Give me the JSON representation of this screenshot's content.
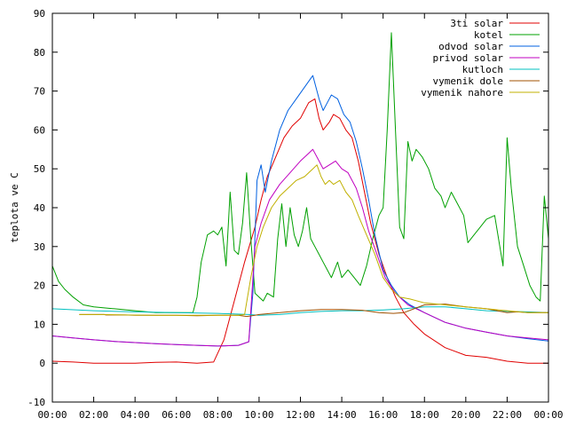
{
  "chart_data": {
    "type": "line",
    "title": "",
    "xlabel": "",
    "ylabel": "teplota ve C",
    "xlim": [
      0,
      24
    ],
    "ylim": [
      -10,
      90
    ],
    "x_ticks": [
      "00:00",
      "02:00",
      "04:00",
      "06:00",
      "08:00",
      "10:00",
      "12:00",
      "14:00",
      "16:00",
      "18:00",
      "20:00",
      "22:00",
      "00:00"
    ],
    "y_ticks": [
      -10,
      0,
      10,
      20,
      30,
      40,
      50,
      60,
      70,
      80,
      90
    ],
    "grid": false,
    "legend_position": "top-right",
    "series": [
      {
        "name": "3ti solar",
        "color": "#e00000",
        "points": [
          [
            0,
            0.5
          ],
          [
            1,
            0.3
          ],
          [
            2,
            0
          ],
          [
            3,
            0
          ],
          [
            4,
            0
          ],
          [
            5,
            0.2
          ],
          [
            6,
            0.3
          ],
          [
            7,
            0
          ],
          [
            7.8,
            0.3
          ],
          [
            8.3,
            6
          ],
          [
            8.8,
            16
          ],
          [
            9.3,
            26
          ],
          [
            9.8,
            35
          ],
          [
            10.1,
            42
          ],
          [
            10.4,
            48
          ],
          [
            10.8,
            53
          ],
          [
            11.2,
            58
          ],
          [
            11.6,
            61
          ],
          [
            12.0,
            63
          ],
          [
            12.4,
            67
          ],
          [
            12.7,
            68
          ],
          [
            12.9,
            63
          ],
          [
            13.1,
            60
          ],
          [
            13.4,
            62
          ],
          [
            13.6,
            64
          ],
          [
            13.9,
            63
          ],
          [
            14.2,
            60
          ],
          [
            14.5,
            58
          ],
          [
            14.8,
            52
          ],
          [
            15.1,
            44
          ],
          [
            15.4,
            36
          ],
          [
            15.8,
            28
          ],
          [
            16.2,
            22
          ],
          [
            16.6,
            17
          ],
          [
            17.0,
            13
          ],
          [
            17.5,
            10
          ],
          [
            18,
            7.5
          ],
          [
            19,
            4
          ],
          [
            20,
            2
          ],
          [
            21,
            1.5
          ],
          [
            22,
            0.5
          ],
          [
            23,
            0
          ],
          [
            24,
            0
          ]
        ]
      },
      {
        "name": "kotel",
        "color": "#00a000",
        "points": [
          [
            0,
            25
          ],
          [
            0.3,
            21
          ],
          [
            0.6,
            19
          ],
          [
            1,
            17
          ],
          [
            1.5,
            15
          ],
          [
            2,
            14.5
          ],
          [
            3,
            14
          ],
          [
            4,
            13.5
          ],
          [
            5,
            13
          ],
          [
            6,
            13
          ],
          [
            6.8,
            13
          ],
          [
            7.0,
            17
          ],
          [
            7.2,
            26
          ],
          [
            7.5,
            33
          ],
          [
            7.8,
            34
          ],
          [
            8.0,
            33
          ],
          [
            8.2,
            35
          ],
          [
            8.4,
            25
          ],
          [
            8.6,
            44
          ],
          [
            8.8,
            29
          ],
          [
            9.0,
            28
          ],
          [
            9.2,
            36
          ],
          [
            9.4,
            49
          ],
          [
            9.6,
            32
          ],
          [
            9.8,
            18
          ],
          [
            10.0,
            17
          ],
          [
            10.2,
            16
          ],
          [
            10.4,
            18
          ],
          [
            10.7,
            17
          ],
          [
            10.9,
            32
          ],
          [
            11.1,
            41
          ],
          [
            11.3,
            30
          ],
          [
            11.5,
            40
          ],
          [
            11.7,
            33
          ],
          [
            11.9,
            30
          ],
          [
            12.1,
            34
          ],
          [
            12.3,
            40
          ],
          [
            12.5,
            32
          ],
          [
            12.7,
            30
          ],
          [
            12.9,
            28
          ],
          [
            13.1,
            26
          ],
          [
            13.3,
            24
          ],
          [
            13.5,
            22
          ],
          [
            13.8,
            26
          ],
          [
            14.0,
            22
          ],
          [
            14.3,
            24
          ],
          [
            14.6,
            22
          ],
          [
            14.9,
            20
          ],
          [
            15.2,
            25
          ],
          [
            15.5,
            32
          ],
          [
            15.8,
            38
          ],
          [
            16.0,
            40
          ],
          [
            16.2,
            60
          ],
          [
            16.4,
            85
          ],
          [
            16.6,
            60
          ],
          [
            16.8,
            35
          ],
          [
            17.0,
            32
          ],
          [
            17.2,
            57
          ],
          [
            17.4,
            52
          ],
          [
            17.6,
            55
          ],
          [
            17.9,
            53
          ],
          [
            18.2,
            50
          ],
          [
            18.5,
            45
          ],
          [
            18.8,
            43
          ],
          [
            19.0,
            40
          ],
          [
            19.3,
            44
          ],
          [
            19.6,
            41
          ],
          [
            19.9,
            38
          ],
          [
            20.1,
            31
          ],
          [
            20.4,
            33
          ],
          [
            20.7,
            35
          ],
          [
            21.0,
            37
          ],
          [
            21.4,
            38
          ],
          [
            21.8,
            25
          ],
          [
            22.0,
            58
          ],
          [
            22.2,
            45
          ],
          [
            22.5,
            30
          ],
          [
            22.8,
            25
          ],
          [
            23.1,
            20
          ],
          [
            23.4,
            17
          ],
          [
            23.6,
            16
          ],
          [
            23.8,
            43
          ],
          [
            24.0,
            32
          ],
          [
            24.3,
            23
          ]
        ]
      },
      {
        "name": "odvod solar",
        "color": "#0060e0",
        "points": [
          [
            0,
            7
          ],
          [
            1,
            6.5
          ],
          [
            2,
            6
          ],
          [
            3,
            5.6
          ],
          [
            4,
            5.3
          ],
          [
            5,
            5
          ],
          [
            6,
            4.8
          ],
          [
            7,
            4.6
          ],
          [
            8,
            4.4
          ],
          [
            9,
            4.6
          ],
          [
            9.5,
            5.5
          ],
          [
            9.7,
            18
          ],
          [
            9.9,
            47
          ],
          [
            10.1,
            51
          ],
          [
            10.3,
            44
          ],
          [
            10.6,
            52
          ],
          [
            11.0,
            60
          ],
          [
            11.4,
            65
          ],
          [
            11.8,
            68
          ],
          [
            12.2,
            71
          ],
          [
            12.6,
            74
          ],
          [
            12.9,
            68
          ],
          [
            13.1,
            65
          ],
          [
            13.3,
            67
          ],
          [
            13.5,
            69
          ],
          [
            13.8,
            68
          ],
          [
            14.1,
            64
          ],
          [
            14.4,
            62
          ],
          [
            14.7,
            57
          ],
          [
            15.0,
            50
          ],
          [
            15.3,
            42
          ],
          [
            15.6,
            33
          ],
          [
            16.0,
            24
          ],
          [
            16.4,
            20
          ],
          [
            16.8,
            17
          ],
          [
            17.3,
            15
          ],
          [
            18,
            13
          ],
          [
            19,
            10.5
          ],
          [
            20,
            9
          ],
          [
            21,
            8
          ],
          [
            22,
            7
          ],
          [
            23,
            6.3
          ],
          [
            24,
            5.7
          ]
        ]
      },
      {
        "name": "privod solar",
        "color": "#c000c0",
        "points": [
          [
            0,
            7
          ],
          [
            1,
            6.5
          ],
          [
            2,
            6
          ],
          [
            3,
            5.6
          ],
          [
            4,
            5.3
          ],
          [
            5,
            5
          ],
          [
            6,
            4.8
          ],
          [
            7,
            4.6
          ],
          [
            8,
            4.4
          ],
          [
            9,
            4.6
          ],
          [
            9.5,
            5.5
          ],
          [
            9.8,
            30
          ],
          [
            10.1,
            36
          ],
          [
            10.5,
            42
          ],
          [
            11,
            46
          ],
          [
            11.5,
            49
          ],
          [
            12,
            52
          ],
          [
            12.4,
            54
          ],
          [
            12.6,
            55
          ],
          [
            12.9,
            52
          ],
          [
            13.1,
            50
          ],
          [
            13.4,
            51
          ],
          [
            13.7,
            52
          ],
          [
            14.0,
            50
          ],
          [
            14.3,
            49
          ],
          [
            14.7,
            45
          ],
          [
            15.0,
            40
          ],
          [
            15.3,
            34
          ],
          [
            15.7,
            28
          ],
          [
            16.1,
            22
          ],
          [
            16.6,
            18
          ],
          [
            17.2,
            15
          ],
          [
            18,
            13
          ],
          [
            19,
            10.5
          ],
          [
            20,
            9
          ],
          [
            21,
            8
          ],
          [
            22,
            7
          ],
          [
            23,
            6.5
          ],
          [
            24,
            6
          ]
        ]
      },
      {
        "name": "kutloch",
        "color": "#00c0c0",
        "points": [
          [
            0,
            14
          ],
          [
            2,
            13.5
          ],
          [
            4,
            13.2
          ],
          [
            6,
            13
          ],
          [
            8,
            12.8
          ],
          [
            9.5,
            12.5
          ],
          [
            10,
            12.3
          ],
          [
            11,
            12.5
          ],
          [
            12,
            13
          ],
          [
            13,
            13.3
          ],
          [
            14,
            13.5
          ],
          [
            15,
            13.5
          ],
          [
            16,
            13.7
          ],
          [
            17,
            14
          ],
          [
            18,
            14.5
          ],
          [
            19,
            14.5
          ],
          [
            20,
            14
          ],
          [
            21,
            13.5
          ],
          [
            22,
            13.3
          ],
          [
            23,
            13.2
          ],
          [
            24,
            13
          ]
        ]
      },
      {
        "name": "vymenik dole",
        "color": "#a05000",
        "points": [
          [
            1.3,
            12.5
          ],
          [
            2.5,
            12.5
          ],
          [
            2.6,
            12.4
          ],
          [
            3.5,
            12.4
          ],
          [
            4,
            12.3
          ],
          [
            5,
            12.3
          ],
          [
            6,
            12.3
          ],
          [
            7,
            12.2
          ],
          [
            8,
            12.3
          ],
          [
            9,
            12.3
          ],
          [
            9.4,
            12
          ],
          [
            9.8,
            12.3
          ],
          [
            10,
            12.5
          ],
          [
            11,
            13
          ],
          [
            12,
            13.5
          ],
          [
            13,
            13.8
          ],
          [
            14,
            13.8
          ],
          [
            15,
            13.6
          ],
          [
            15.8,
            13
          ],
          [
            16.5,
            12.8
          ],
          [
            17,
            13
          ],
          [
            17.5,
            14
          ],
          [
            18,
            15
          ],
          [
            19,
            15.2
          ],
          [
            20,
            14.5
          ],
          [
            21,
            14
          ],
          [
            22,
            13
          ],
          [
            22.5,
            13.2
          ],
          [
            23,
            13
          ],
          [
            24,
            13
          ]
        ]
      },
      {
        "name": "vymenik nahore",
        "color": "#c0b000",
        "points": [
          [
            1.3,
            12.5
          ],
          [
            2.5,
            12.5
          ],
          [
            3.5,
            12.4
          ],
          [
            5,
            12.3
          ],
          [
            7,
            12.3
          ],
          [
            9,
            12.3
          ],
          [
            9.3,
            12.5
          ],
          [
            9.6,
            22
          ],
          [
            9.9,
            30
          ],
          [
            10.2,
            35
          ],
          [
            10.6,
            40
          ],
          [
            11.0,
            43
          ],
          [
            11.4,
            45
          ],
          [
            11.8,
            47
          ],
          [
            12.2,
            48
          ],
          [
            12.6,
            50
          ],
          [
            12.8,
            51
          ],
          [
            13.0,
            48
          ],
          [
            13.2,
            46
          ],
          [
            13.4,
            47
          ],
          [
            13.6,
            46
          ],
          [
            13.9,
            47
          ],
          [
            14.2,
            44
          ],
          [
            14.5,
            42
          ],
          [
            14.8,
            38
          ],
          [
            15.2,
            33
          ],
          [
            15.6,
            28
          ],
          [
            16.0,
            22
          ],
          [
            16.4,
            19
          ],
          [
            16.8,
            17
          ],
          [
            17.3,
            16.5
          ],
          [
            18,
            15.5
          ],
          [
            19,
            15
          ],
          [
            20,
            14.5
          ],
          [
            21,
            14
          ],
          [
            22,
            13.5
          ],
          [
            23,
            13
          ],
          [
            24,
            13
          ]
        ]
      }
    ]
  }
}
